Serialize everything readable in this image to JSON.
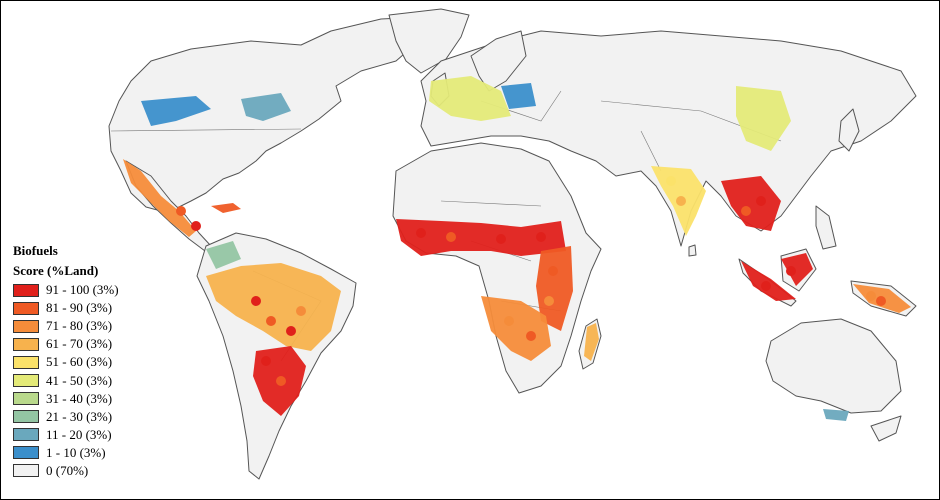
{
  "legend": {
    "title_line1": "Biofuels",
    "title_line2": "Score (%Land)",
    "classes": [
      {
        "label": "91 - 100 (3%)",
        "color": "#e0201b"
      },
      {
        "label": "81 - 90 (3%)",
        "color": "#ef5a24"
      },
      {
        "label": "71 - 80 (3%)",
        "color": "#f58c3a"
      },
      {
        "label": "61 - 70 (3%)",
        "color": "#f7b24d"
      },
      {
        "label": "51 - 60 (3%)",
        "color": "#fbe26a"
      },
      {
        "label": "41 - 50 (3%)",
        "color": "#e4ea78"
      },
      {
        "label": "31 - 40 (3%)",
        "color": "#b9d98c"
      },
      {
        "label": "21 - 30 (3%)",
        "color": "#93c5a3"
      },
      {
        "label": "11 - 20 (3%)",
        "color": "#6aa8bd"
      },
      {
        "label": "1 - 10 (3%)",
        "color": "#3b8fcb"
      },
      {
        "label": "0 (70%)",
        "color": "#f2f2f2"
      }
    ]
  },
  "regions": [
    {
      "name": "mexico-central-america",
      "class": 2
    },
    {
      "name": "caribbean",
      "class": 1
    },
    {
      "name": "north-america-plains",
      "class": 9
    },
    {
      "name": "north-america-east",
      "class": 8
    },
    {
      "name": "south-america-brazil",
      "class": 3
    },
    {
      "name": "south-america-south",
      "class": 0
    },
    {
      "name": "south-america-north",
      "class": 7
    },
    {
      "name": "west-africa-sahel",
      "class": 0
    },
    {
      "name": "east-africa",
      "class": 1
    },
    {
      "name": "southern-africa",
      "class": 2
    },
    {
      "name": "madagascar",
      "class": 3
    },
    {
      "name": "europe",
      "class": 5
    },
    {
      "name": "eastern-europe",
      "class": 9
    },
    {
      "name": "india",
      "class": 4
    },
    {
      "name": "southeast-asia",
      "class": 0
    },
    {
      "name": "indonesia",
      "class": 0
    },
    {
      "name": "china-east",
      "class": 5
    },
    {
      "name": "australia-southeast",
      "class": 8
    },
    {
      "name": "new-guinea",
      "class": 2
    }
  ]
}
